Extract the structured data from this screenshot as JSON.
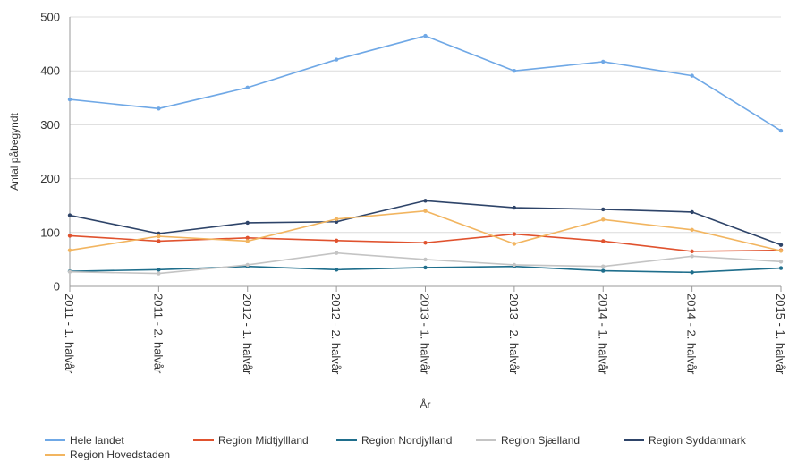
{
  "chart_data": {
    "type": "line",
    "xlabel": "År",
    "ylabel": "Antal påbegyndt",
    "ylim": [
      0,
      500
    ],
    "yticks": [
      0,
      100,
      200,
      300,
      400,
      500
    ],
    "grid": "horizontal",
    "legend": "bottom",
    "categories": [
      "2011 - 1. halvår",
      "2011 - 2. halvår",
      "2012 - 1. halvår",
      "2012 - 2. halvår",
      "2013 - 1. halvår",
      "2013 - 2. halvår",
      "2014 - 1. halvår",
      "2014 - 2. halvår",
      "2015 - 1. halvår"
    ],
    "series": [
      {
        "name": "Hele landet",
        "color": "#6fa8e6",
        "values": [
          347,
          330,
          369,
          421,
          465,
          400,
          417,
          391,
          289
        ]
      },
      {
        "name": "Region Midtjyllland",
        "color": "#e0522e",
        "values": [
          94,
          84,
          90,
          85,
          81,
          97,
          84,
          65,
          67
        ]
      },
      {
        "name": "Region Nordjylland",
        "color": "#1f6e8c",
        "values": [
          28,
          31,
          37,
          31,
          35,
          37,
          29,
          26,
          34
        ]
      },
      {
        "name": "Region Sjælland",
        "color": "#c4c4c4",
        "values": [
          27,
          24,
          40,
          62,
          50,
          40,
          37,
          56,
          46
        ]
      },
      {
        "name": "Region Syddanmark",
        "color": "#2e4469",
        "values": [
          132,
          98,
          118,
          120,
          159,
          146,
          143,
          138,
          77
        ]
      },
      {
        "name": "Region Hovedstaden",
        "color": "#f2b560",
        "values": [
          67,
          93,
          84,
          125,
          140,
          79,
          124,
          105,
          66
        ]
      }
    ]
  }
}
